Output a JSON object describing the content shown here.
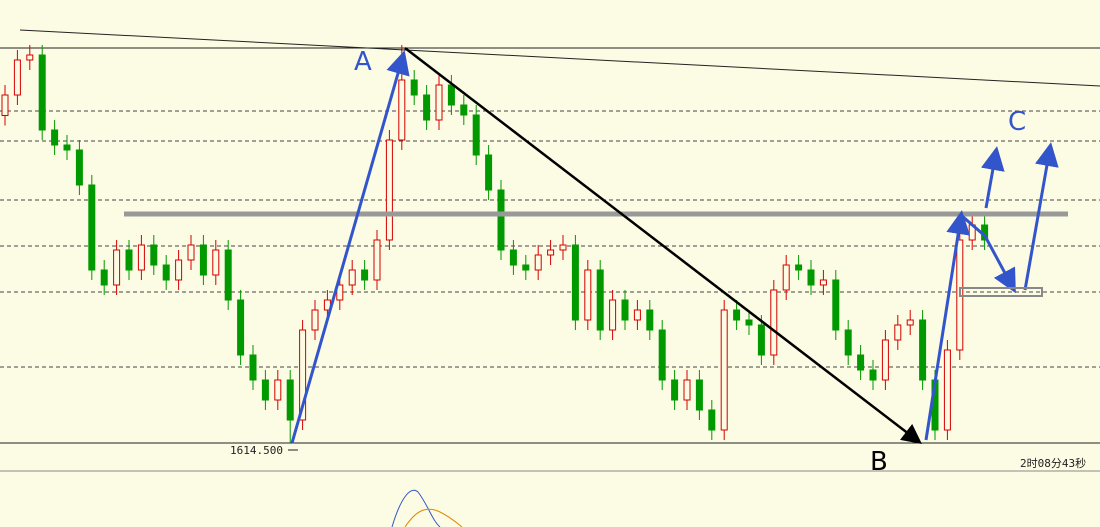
{
  "chart_data": {
    "type": "candlestick",
    "ylim": [
      1609.1,
      1703.1
    ],
    "candles": [
      [
        1680.0,
        1686.1,
        1678.0,
        1684.1
      ],
      [
        1684.1,
        1693.1,
        1682.1,
        1691.1
      ],
      [
        1691.1,
        1694.1,
        1689.1,
        1692.1
      ],
      [
        1692.1,
        1694.1,
        1675.1,
        1677.1
      ],
      [
        1677.1,
        1679.1,
        1672.1,
        1674.1
      ],
      [
        1674.1,
        1676.1,
        1671.1,
        1673.1
      ],
      [
        1673.1,
        1675.1,
        1664.1,
        1666.1
      ],
      [
        1666.1,
        1668.1,
        1647.1,
        1649.1
      ],
      [
        1649.1,
        1651.1,
        1644.1,
        1646.1
      ],
      [
        1646.1,
        1655.1,
        1644.1,
        1653.1
      ],
      [
        1653.1,
        1655.1,
        1647.1,
        1649.1
      ],
      [
        1649.1,
        1656.1,
        1647.1,
        1654.1
      ],
      [
        1654.1,
        1656.1,
        1648.1,
        1650.1
      ],
      [
        1650.1,
        1652.1,
        1645.1,
        1647.1
      ],
      [
        1647.1,
        1653.1,
        1645.1,
        1651.1
      ],
      [
        1651.1,
        1656.1,
        1649.1,
        1654.1
      ],
      [
        1654.1,
        1656.1,
        1646.1,
        1648.1
      ],
      [
        1648.1,
        1655.1,
        1646.1,
        1653.1
      ],
      [
        1653.1,
        1655.1,
        1641.1,
        1643.1
      ],
      [
        1643.1,
        1645.1,
        1630.1,
        1632.1
      ],
      [
        1632.1,
        1634.1,
        1625.1,
        1627.1
      ],
      [
        1627.1,
        1629.1,
        1621.1,
        1623.1
      ],
      [
        1623.1,
        1629.1,
        1621.1,
        1627.1
      ],
      [
        1627.1,
        1629.1,
        1614.5,
        1619.1
      ],
      [
        1619.1,
        1639.1,
        1617.1,
        1637.1
      ],
      [
        1637.1,
        1643.1,
        1635.1,
        1641.1
      ],
      [
        1641.1,
        1645.1,
        1639.1,
        1643.1
      ],
      [
        1643.1,
        1648.1,
        1641.1,
        1646.1
      ],
      [
        1646.1,
        1651.1,
        1644.1,
        1649.1
      ],
      [
        1649.1,
        1651.1,
        1645.1,
        1647.1
      ],
      [
        1647.1,
        1657.1,
        1645.1,
        1655.1
      ],
      [
        1655.1,
        1677.1,
        1653.1,
        1675.1
      ],
      [
        1675.1,
        1694.1,
        1673.1,
        1687.1
      ],
      [
        1687.1,
        1689.1,
        1682.1,
        1684.1
      ],
      [
        1684.1,
        1686.1,
        1677.1,
        1679.1
      ],
      [
        1679.1,
        1688.1,
        1677.1,
        1686.1
      ],
      [
        1686.1,
        1688.1,
        1680.1,
        1682.1
      ],
      [
        1682.1,
        1684.1,
        1678.1,
        1680.1
      ],
      [
        1680.1,
        1682.1,
        1670.1,
        1672.1
      ],
      [
        1672.1,
        1674.1,
        1663.1,
        1665.1
      ],
      [
        1665.1,
        1667.1,
        1651.1,
        1653.1
      ],
      [
        1653.1,
        1655.1,
        1648.1,
        1650.1
      ],
      [
        1650.1,
        1652.1,
        1647.1,
        1649.1
      ],
      [
        1649.1,
        1654.1,
        1647.1,
        1652.1
      ],
      [
        1652.1,
        1655.1,
        1650.1,
        1653.1
      ],
      [
        1653.1,
        1656.1,
        1651.1,
        1654.1
      ],
      [
        1654.1,
        1656.1,
        1637.1,
        1639.1
      ],
      [
        1639.1,
        1651.1,
        1637.1,
        1649.1
      ],
      [
        1649.1,
        1651.1,
        1635.1,
        1637.1
      ],
      [
        1637.1,
        1645.1,
        1635.1,
        1643.1
      ],
      [
        1643.1,
        1645.1,
        1637.1,
        1639.1
      ],
      [
        1639.1,
        1643.1,
        1637.1,
        1641.1
      ],
      [
        1641.1,
        1643.1,
        1635.1,
        1637.1
      ],
      [
        1637.1,
        1639.1,
        1625.1,
        1627.1
      ],
      [
        1627.1,
        1629.1,
        1621.1,
        1623.1
      ],
      [
        1623.1,
        1629.1,
        1621.1,
        1627.1
      ],
      [
        1627.1,
        1629.1,
        1619.1,
        1621.1
      ],
      [
        1621.1,
        1623.1,
        1615.1,
        1617.1
      ],
      [
        1617.1,
        1643.1,
        1615.1,
        1641.1
      ],
      [
        1641.1,
        1643.1,
        1637.1,
        1639.1
      ],
      [
        1639.1,
        1641.1,
        1636.1,
        1638.1
      ],
      [
        1638.1,
        1640.1,
        1630.1,
        1632.1
      ],
      [
        1632.1,
        1647.1,
        1630.1,
        1645.1
      ],
      [
        1645.1,
        1652.1,
        1643.1,
        1650.1
      ],
      [
        1650.1,
        1652.1,
        1647.1,
        1649.1
      ],
      [
        1649.1,
        1651.1,
        1644.1,
        1646.1
      ],
      [
        1646.1,
        1649.1,
        1644.1,
        1647.1
      ],
      [
        1647.1,
        1649.1,
        1635.1,
        1637.1
      ],
      [
        1637.1,
        1639.1,
        1630.1,
        1632.1
      ],
      [
        1632.1,
        1634.1,
        1627.1,
        1629.1
      ],
      [
        1629.1,
        1631.1,
        1625.1,
        1627.1
      ],
      [
        1627.1,
        1637.1,
        1625.1,
        1635.1
      ],
      [
        1635.1,
        1640.1,
        1633.1,
        1638.1
      ],
      [
        1638.1,
        1641.1,
        1636.1,
        1639.1
      ],
      [
        1639.1,
        1641.1,
        1625.1,
        1627.1
      ],
      [
        1627.1,
        1629.1,
        1615.1,
        1617.1
      ],
      [
        1617.1,
        1635.1,
        1615.1,
        1633.1
      ],
      [
        1633.1,
        1657.1,
        1631.1,
        1655.1
      ],
      [
        1655.1,
        1660.1,
        1653.1,
        1658.1
      ],
      [
        1658.1,
        1660.1,
        1653.1,
        1655.1
      ]
    ],
    "up_color": "#d40000",
    "down_color": "#009900",
    "low_label": "1614.500",
    "timer": "2时08分43秒",
    "annotations": {
      "a": "A",
      "b": "B",
      "c": "C"
    }
  }
}
